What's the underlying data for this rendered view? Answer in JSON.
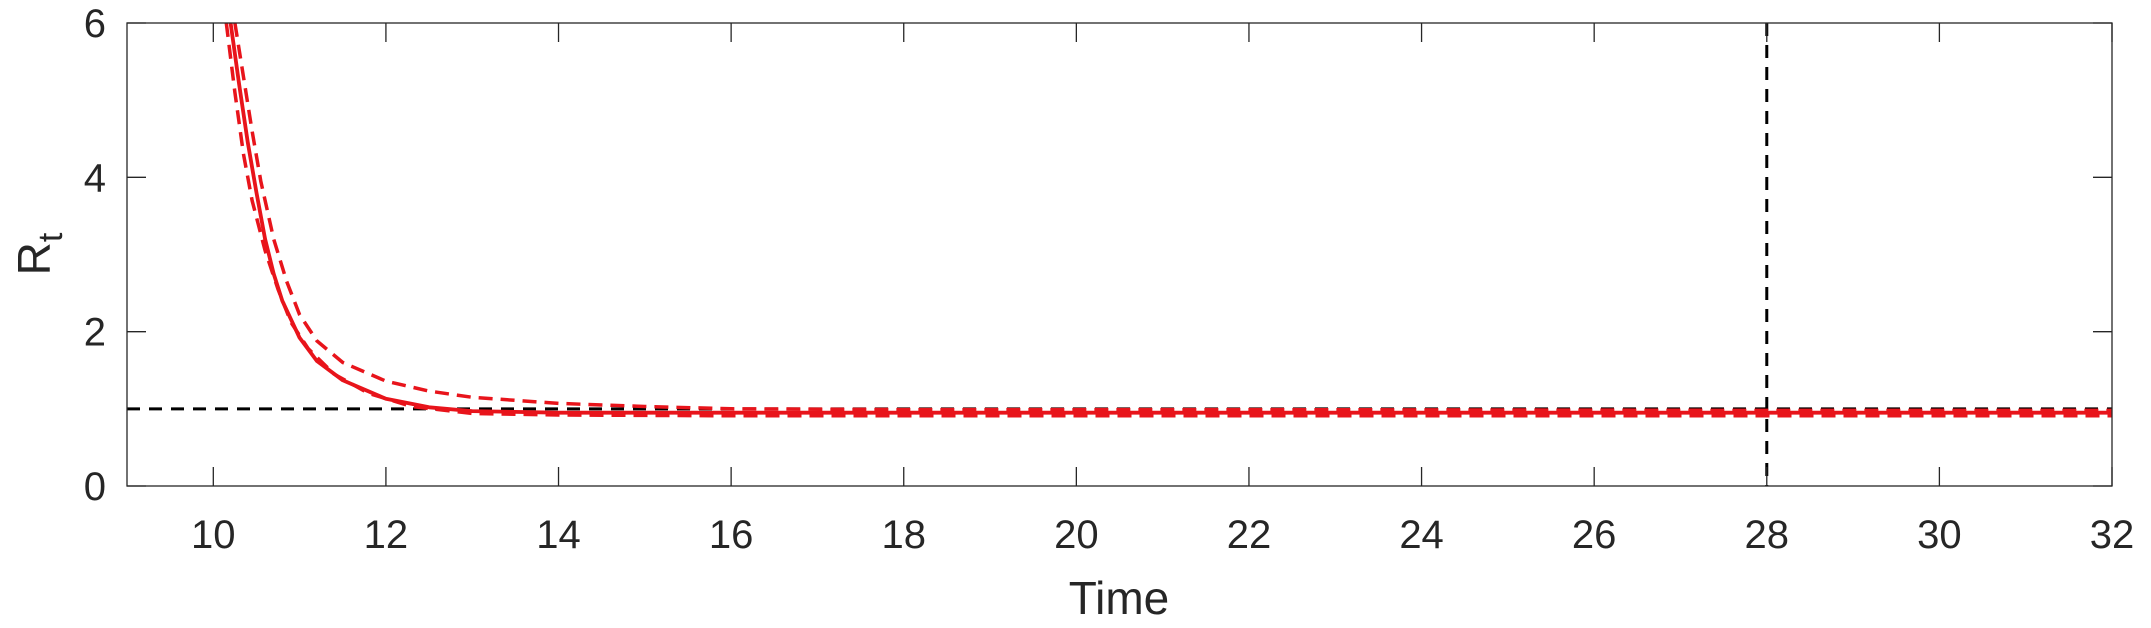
{
  "chart_data": {
    "type": "line",
    "title": "",
    "xlabel": "Time",
    "ylabel": {
      "base": "R",
      "subscript": "t"
    },
    "xlim": [
      9,
      32
    ],
    "ylim": [
      0,
      6
    ],
    "xticks": [
      "10",
      "12",
      "14",
      "16",
      "18",
      "20",
      "22",
      "24",
      "26",
      "28",
      "30",
      "32"
    ],
    "yticks": [
      "0",
      "2",
      "4",
      "6"
    ],
    "grid": false,
    "legend": "none",
    "reference_lines": [
      {
        "orientation": "horizontal",
        "value": 1,
        "style": "dashed",
        "color": "#000000"
      },
      {
        "orientation": "vertical",
        "value": 28,
        "style": "dashed",
        "color": "#000000"
      }
    ],
    "series": [
      {
        "role": "estimate",
        "style": "solid",
        "color": "#e8141b",
        "points": [
          [
            10.2,
            6.0
          ],
          [
            10.3,
            5.2
          ],
          [
            10.4,
            4.45
          ],
          [
            10.5,
            3.8
          ],
          [
            10.6,
            3.2
          ],
          [
            10.7,
            2.75
          ],
          [
            10.8,
            2.4
          ],
          [
            11.0,
            1.92
          ],
          [
            11.2,
            1.62
          ],
          [
            11.5,
            1.37
          ],
          [
            12.0,
            1.13
          ],
          [
            12.5,
            1.02
          ],
          [
            13.0,
            0.97
          ],
          [
            14.0,
            0.95
          ],
          [
            16.0,
            0.95
          ],
          [
            20.0,
            0.95
          ],
          [
            24.0,
            0.95
          ],
          [
            28.0,
            0.95
          ],
          [
            32.0,
            0.95
          ]
        ]
      },
      {
        "role": "upper-bound",
        "style": "dashed",
        "color": "#e8141b",
        "points": [
          [
            10.25,
            6.0
          ],
          [
            10.35,
            5.3
          ],
          [
            10.45,
            4.6
          ],
          [
            10.55,
            3.95
          ],
          [
            10.7,
            3.2
          ],
          [
            10.85,
            2.65
          ],
          [
            11.0,
            2.22
          ],
          [
            11.2,
            1.88
          ],
          [
            11.5,
            1.6
          ],
          [
            12.0,
            1.36
          ],
          [
            12.5,
            1.23
          ],
          [
            13.0,
            1.15
          ],
          [
            14.0,
            1.07
          ],
          [
            15.0,
            1.03
          ],
          [
            16.0,
            1.0
          ],
          [
            18.0,
            0.99
          ],
          [
            22.0,
            0.99
          ],
          [
            28.0,
            0.98
          ],
          [
            32.0,
            0.98
          ]
        ]
      },
      {
        "role": "lower-bound",
        "style": "dashed",
        "color": "#e8141b",
        "points": [
          [
            10.15,
            6.0
          ],
          [
            10.25,
            5.1
          ],
          [
            10.35,
            4.3
          ],
          [
            10.45,
            3.7
          ],
          [
            10.6,
            3.05
          ],
          [
            10.75,
            2.55
          ],
          [
            10.9,
            2.12
          ],
          [
            11.1,
            1.78
          ],
          [
            11.4,
            1.45
          ],
          [
            11.8,
            1.2
          ],
          [
            12.3,
            1.03
          ],
          [
            13.0,
            0.94
          ],
          [
            14.0,
            0.92
          ],
          [
            16.0,
            0.91
          ],
          [
            20.0,
            0.91
          ],
          [
            24.0,
            0.91
          ],
          [
            28.0,
            0.91
          ],
          [
            32.0,
            0.91
          ]
        ]
      }
    ]
  }
}
